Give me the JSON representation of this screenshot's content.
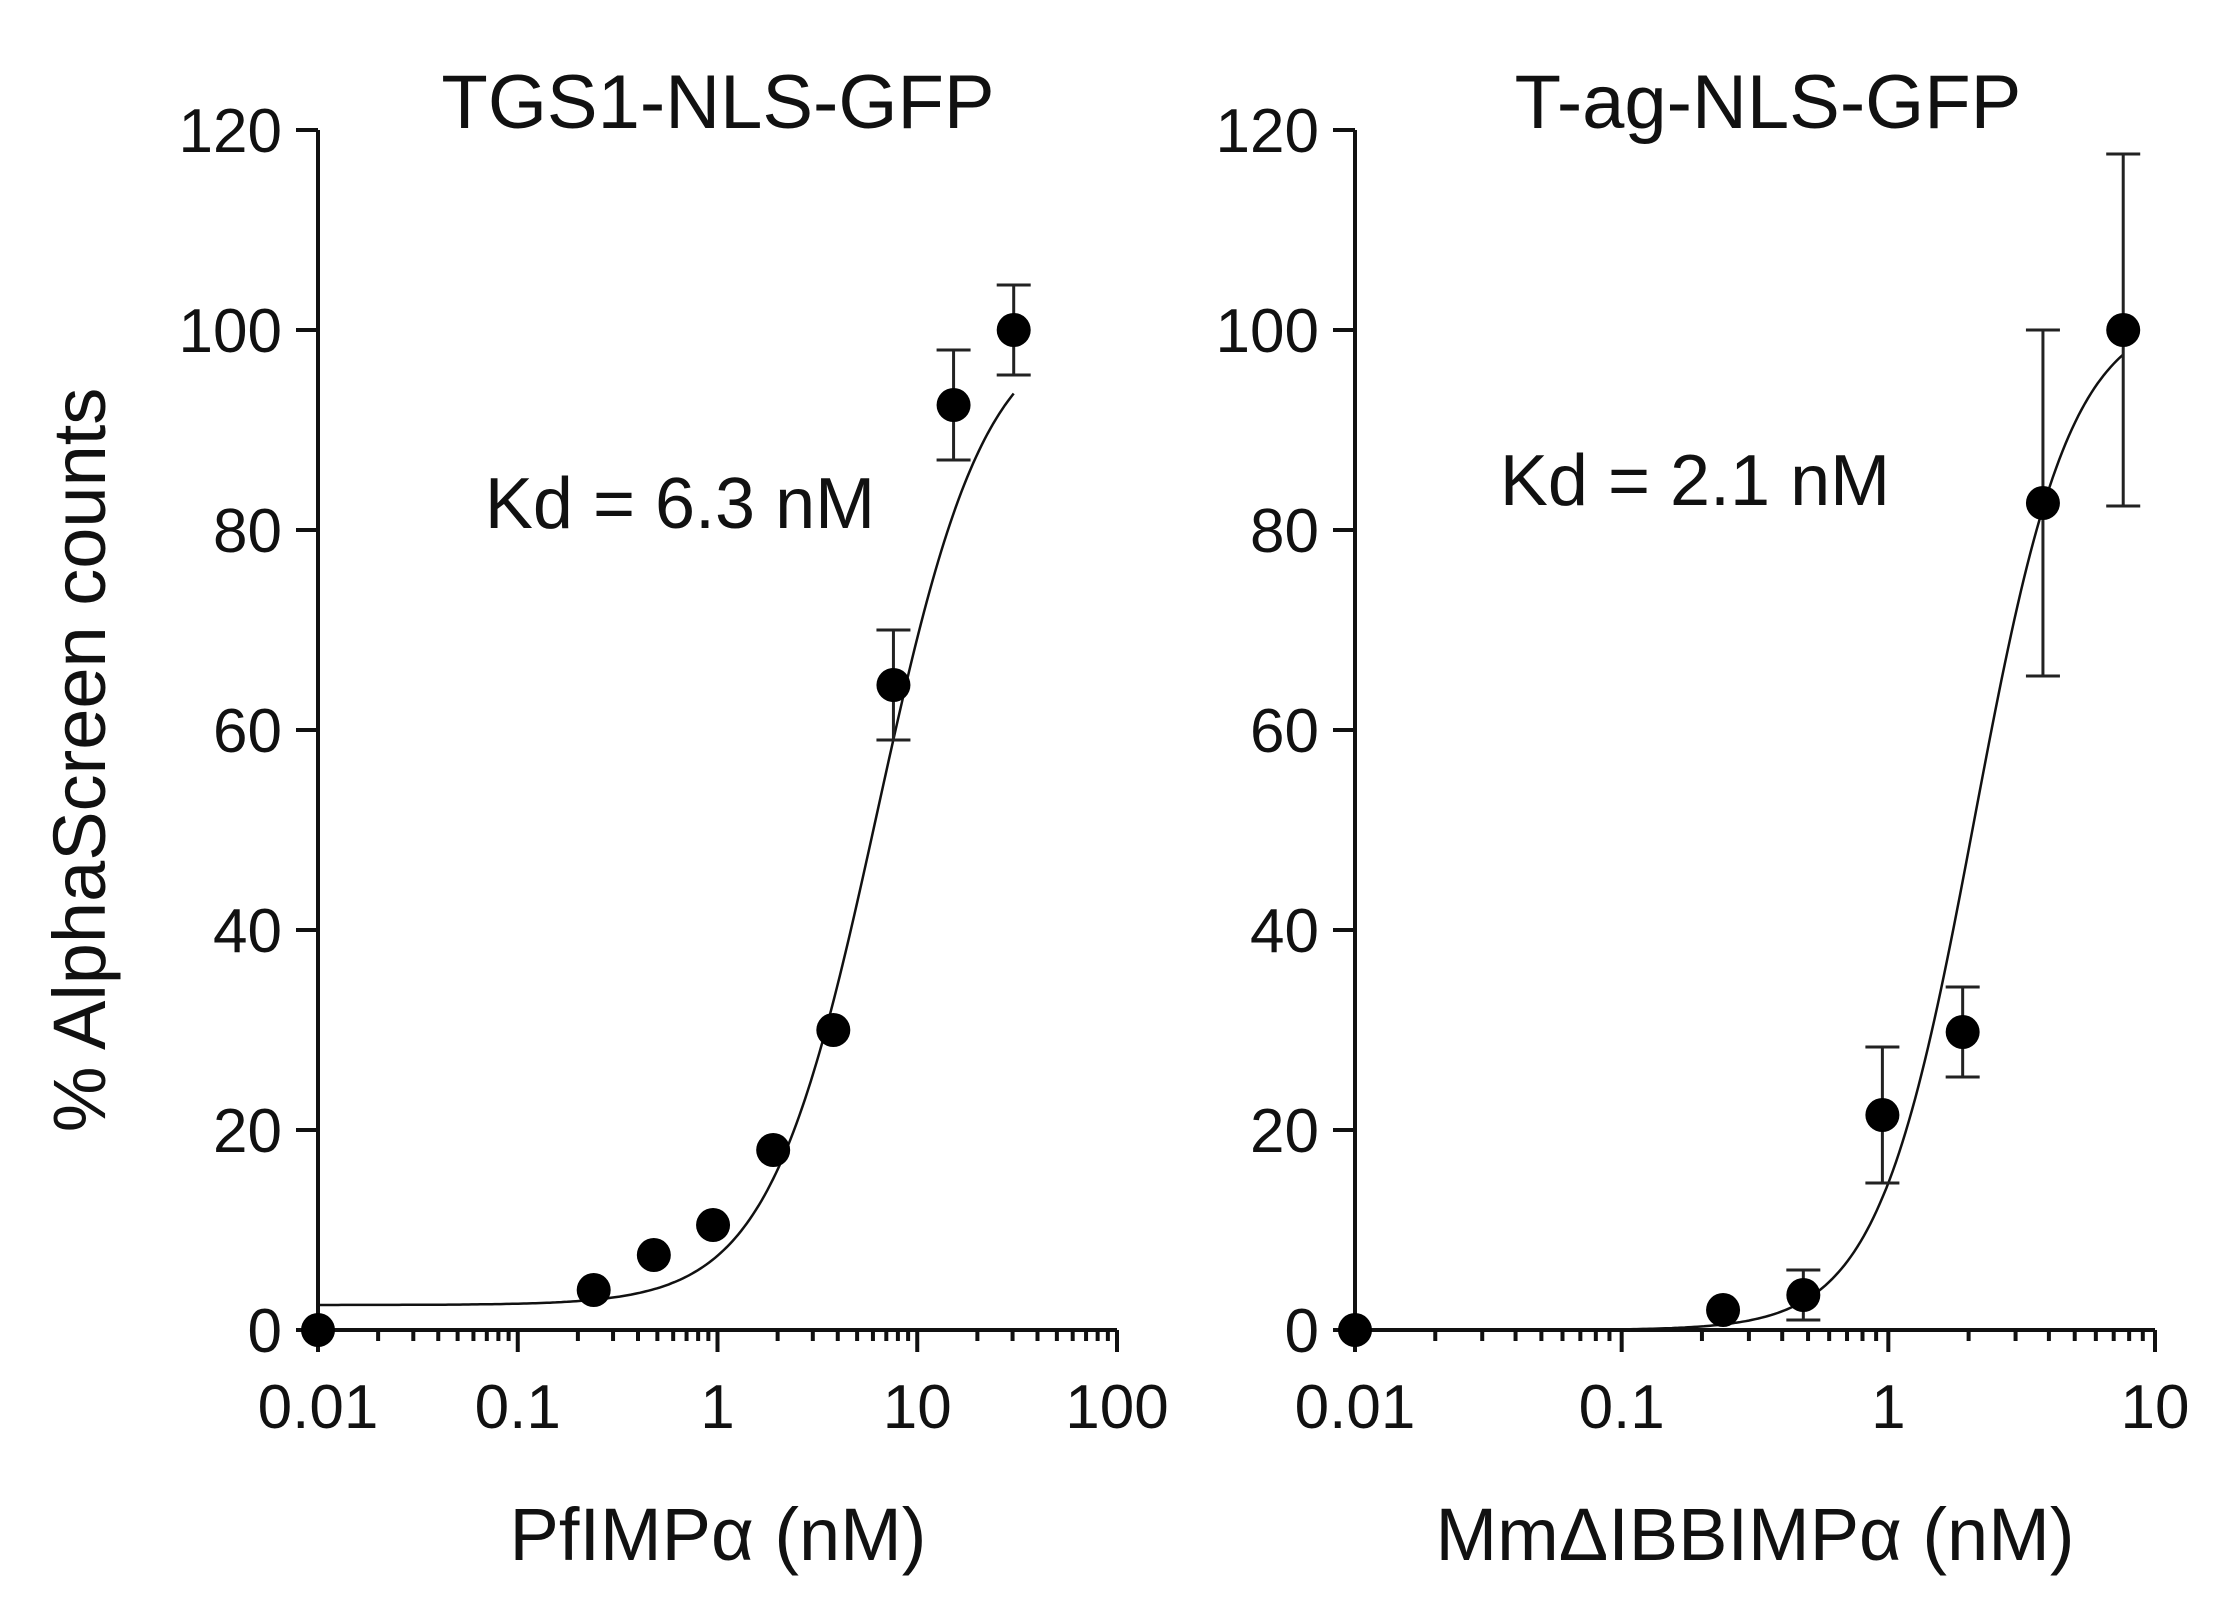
{
  "figure": {
    "ylabel": "% AlphaScreen counts"
  },
  "chart_data": [
    {
      "type": "scatter",
      "title": "TGS1-NLS-GFP",
      "xlabel": "PfIMPα (nM)",
      "ylabel": "% AlphaScreen counts",
      "xscale": "log",
      "xlim": [
        0.01,
        100
      ],
      "ylim": [
        0,
        120
      ],
      "xticks": [
        0.01,
        0.1,
        1,
        10,
        100
      ],
      "xtick_labels": [
        "0.01",
        "0.1",
        "1",
        "10",
        "100"
      ],
      "yticks": [
        0,
        20,
        40,
        60,
        80,
        100,
        120
      ],
      "ytick_labels": [
        "0",
        "20",
        "40",
        "60",
        "80",
        "100",
        "120"
      ],
      "annotation": "Kd = 6.3 nM",
      "points": [
        {
          "x": 0.01,
          "y": 0,
          "err": 0
        },
        {
          "x": 0.24,
          "y": 4,
          "err": 0
        },
        {
          "x": 0.48,
          "y": 7.5,
          "err": 0
        },
        {
          "x": 0.95,
          "y": 10.5,
          "err": 0
        },
        {
          "x": 1.9,
          "y": 18,
          "err": 0
        },
        {
          "x": 3.8,
          "y": 30,
          "err": 0
        },
        {
          "x": 7.6,
          "y": 64.5,
          "err": 5.5
        },
        {
          "x": 15.2,
          "y": 92.5,
          "err": 5.5
        },
        {
          "x": 30.4,
          "y": 100,
          "err": 4.5
        }
      ],
      "fit": {
        "model": "one-site binding",
        "kd": 6.3,
        "bottom": 2.5,
        "top": 101,
        "hill": 1.6
      }
    },
    {
      "type": "scatter",
      "title": "T-ag-NLS-GFP",
      "xlabel": "MmΔIBBIMPα (nM)",
      "ylabel": "% AlphaScreen counts",
      "xscale": "log",
      "xlim": [
        0.01,
        10
      ],
      "ylim": [
        0,
        120
      ],
      "xticks": [
        0.01,
        0.1,
        1,
        10
      ],
      "xtick_labels": [
        "0.01",
        "0.1",
        "1",
        "10"
      ],
      "yticks": [
        0,
        20,
        40,
        60,
        80,
        100,
        120
      ],
      "ytick_labels": [
        "0",
        "20",
        "40",
        "60",
        "80",
        "100",
        "120"
      ],
      "annotation": "Kd = 2.1 nM",
      "points": [
        {
          "x": 0.01,
          "y": 0,
          "err": 0
        },
        {
          "x": 0.24,
          "y": 2,
          "err": 0
        },
        {
          "x": 0.48,
          "y": 3.5,
          "err": 2.5
        },
        {
          "x": 0.95,
          "y": 21.5,
          "err": 6.8
        },
        {
          "x": 1.9,
          "y": 29.8,
          "err": 4.5
        },
        {
          "x": 3.8,
          "y": 82.7,
          "err": 17.3
        },
        {
          "x": 7.6,
          "y": 100,
          "err": 17.6
        }
      ],
      "fit": {
        "model": "one-site binding",
        "kd": 2.1,
        "bottom": 0,
        "top": 102,
        "hill": 2.4
      }
    }
  ]
}
